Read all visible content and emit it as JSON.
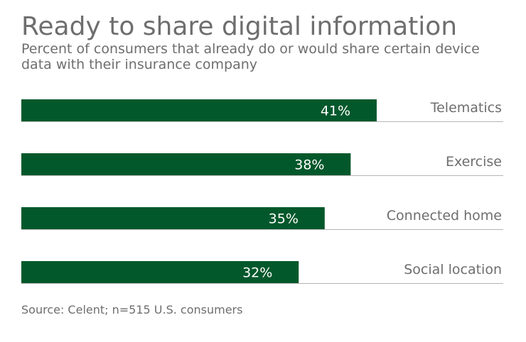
{
  "title": "Ready to share digital information",
  "subtitle": "Percent of consumers that already do or would share certain device data with their insurance company",
  "source": "Source: Celent; n=515 U.S. consumers",
  "chart_data": {
    "type": "bar",
    "orientation": "horizontal",
    "categories": [
      "Telematics",
      "Exercise",
      "Connected home",
      "Social location"
    ],
    "values": [
      41,
      38,
      35,
      32
    ],
    "value_labels": [
      "41%",
      "38%",
      "35%",
      "32%"
    ],
    "unit": "%",
    "bar_color": "#03582b",
    "label_color": "#ffffff",
    "category_label_position": "right",
    "grid": false,
    "xlim": [
      0,
      55.6
    ]
  }
}
